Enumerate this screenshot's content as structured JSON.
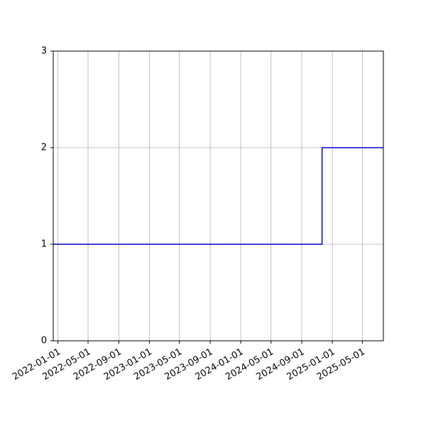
{
  "chart_data": {
    "type": "line",
    "step": "post",
    "title": "",
    "xlabel": "",
    "ylabel": "",
    "grid": true,
    "colors": {
      "line": "#0000cc",
      "grid": "#b0b0b0",
      "axes": "#000000"
    },
    "xlim": [
      "2021-12-13",
      "2025-07-24"
    ],
    "ylim": [
      0,
      3
    ],
    "xticks": [
      "2022-01-01",
      "2022-05-01",
      "2022-09-01",
      "2023-01-01",
      "2023-05-01",
      "2023-09-01",
      "2024-01-01",
      "2024-05-01",
      "2024-09-01",
      "2025-01-01",
      "2025-05-01"
    ],
    "yticks": [
      "0",
      "1",
      "2",
      "3"
    ],
    "series": [
      {
        "x": [
          "2021-12-13",
          "2024-11-21",
          "2025-07-24"
        ],
        "y": [
          1,
          2,
          2
        ]
      }
    ]
  }
}
